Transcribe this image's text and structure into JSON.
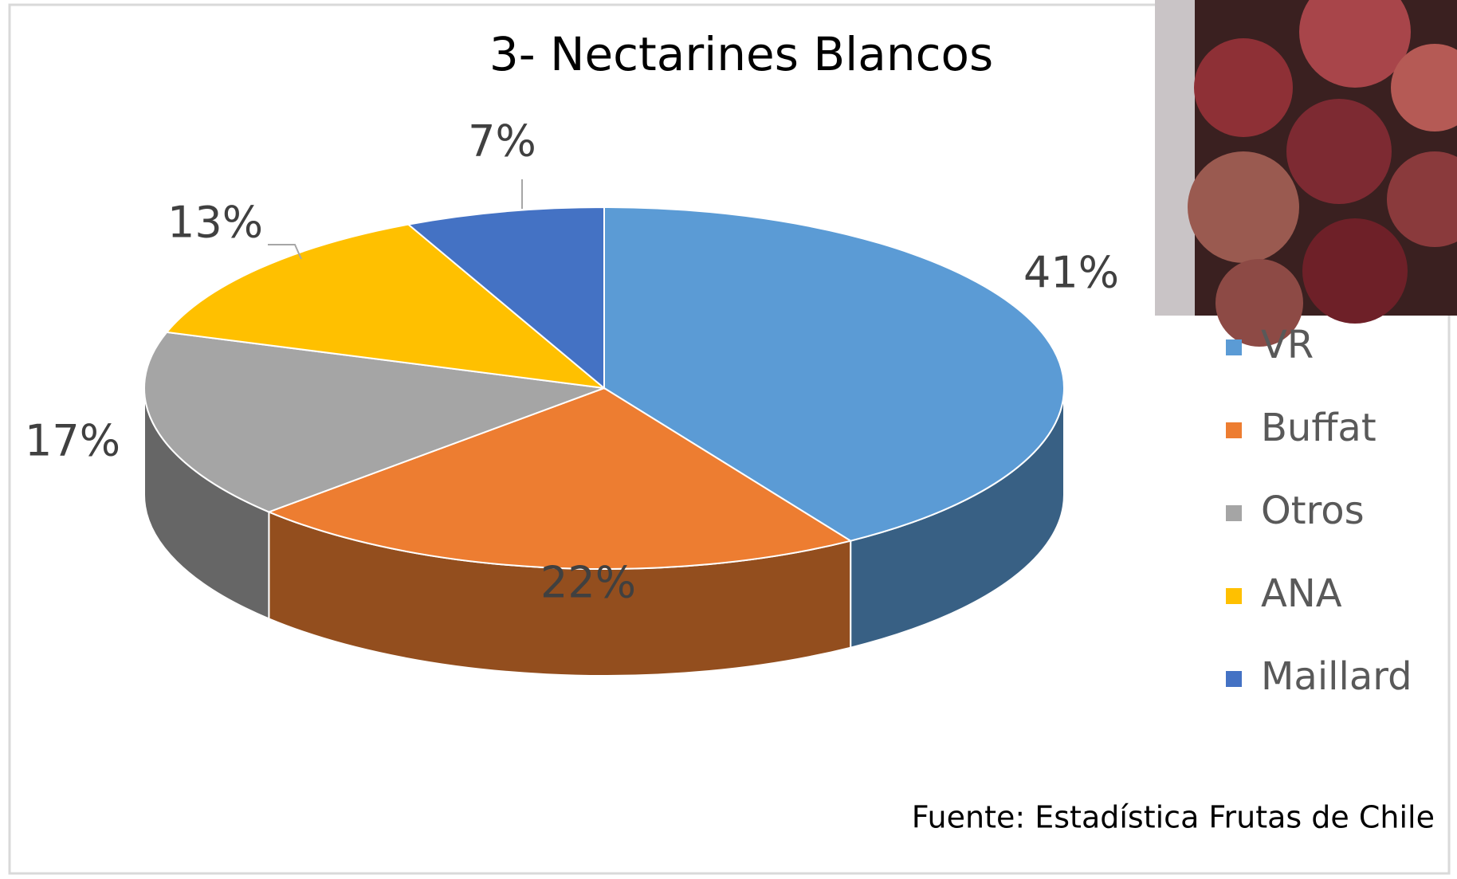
{
  "chart_data": {
    "type": "pie3d",
    "title": "3- Nectarines Blancos",
    "categories": [
      "VR",
      "Buffat",
      "Otros",
      "ANA",
      "Maillard"
    ],
    "values": [
      41,
      22,
      17,
      13,
      7
    ],
    "value_labels": [
      "41%",
      "22%",
      "17%",
      "13%",
      "7%"
    ],
    "colors": [
      "#5b9bd5",
      "#ed7d31",
      "#a5a5a5",
      "#ffc000",
      "#4472c4"
    ],
    "legend": "right",
    "source": "Fuente: Estadística Frutas de Chile"
  }
}
